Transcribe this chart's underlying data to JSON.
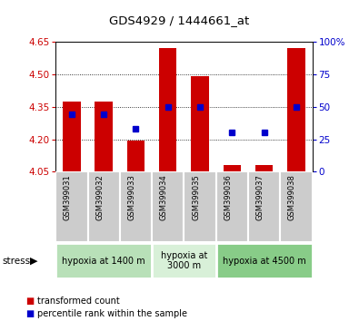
{
  "title": "GDS4929 / 1444661_at",
  "samples": [
    "GSM399031",
    "GSM399032",
    "GSM399033",
    "GSM399034",
    "GSM399035",
    "GSM399036",
    "GSM399037",
    "GSM399038"
  ],
  "transformed_counts": [
    4.375,
    4.375,
    4.195,
    4.62,
    4.49,
    4.08,
    4.08,
    4.62
  ],
  "percentile_ranks": [
    44,
    44,
    33,
    50,
    50,
    30,
    30,
    50
  ],
  "ylim_left": [
    4.05,
    4.65
  ],
  "ylim_right": [
    0,
    100
  ],
  "yticks_left": [
    4.05,
    4.2,
    4.35,
    4.5,
    4.65
  ],
  "yticks_right": [
    0,
    25,
    50,
    75,
    100
  ],
  "bar_color": "#cc0000",
  "dot_color": "#0000cc",
  "bar_width": 0.55,
  "base_value": 4.05,
  "groups": [
    {
      "label": "hypoxia at 1400 m",
      "start": 0,
      "end": 3,
      "color": "#b8e0b8"
    },
    {
      "label": "hypoxia at\n3000 m",
      "start": 3,
      "end": 5,
      "color": "#d8f0d8"
    },
    {
      "label": "hypoxia at 4500 m",
      "start": 5,
      "end": 8,
      "color": "#88cc88"
    }
  ],
  "stress_label": "stress",
  "legend_red": "transformed count",
  "legend_blue": "percentile rank within the sample",
  "axis_left_color": "#cc0000",
  "axis_right_color": "#0000cc",
  "bg_color": "#ffffff",
  "sample_box_color": "#cccccc",
  "sample_box_edge": "#ffffff"
}
